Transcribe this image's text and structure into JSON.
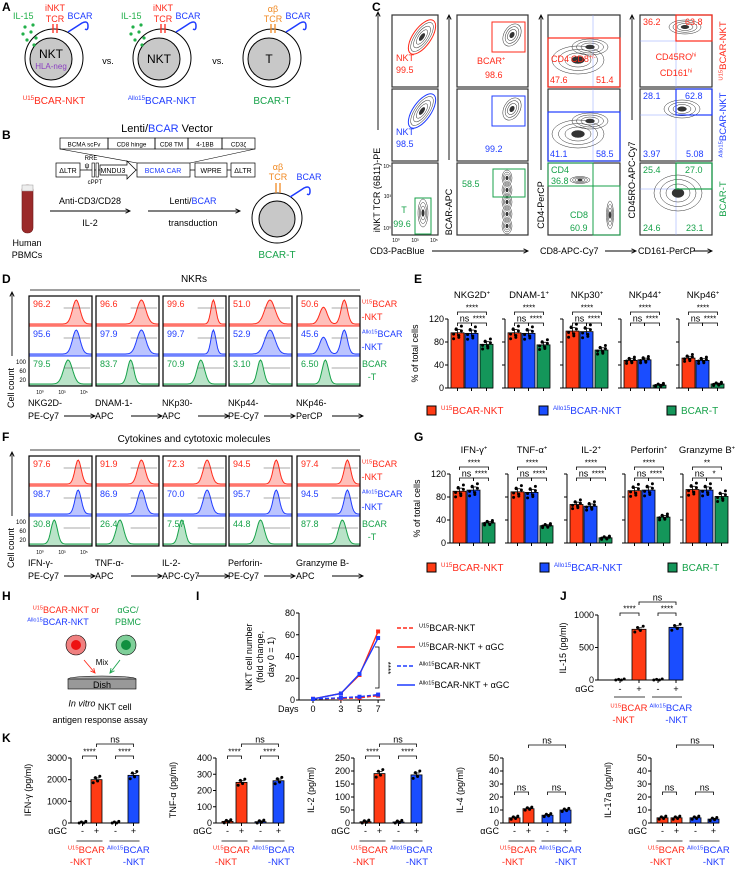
{
  "panel_letters": [
    "A",
    "B",
    "C",
    "D",
    "E",
    "F",
    "G",
    "H",
    "I",
    "J",
    "K"
  ],
  "colors": {
    "u15": "#ff2a1a",
    "allo": "#1f3cff",
    "bcart": "#17a24a",
    "tcr_ab": "#f08a24",
    "hla": "#8b3fc0",
    "il15": "#22b04a",
    "bar_u15": "#ff3b14",
    "bar_allo": "#1a4dff",
    "bar_bcart": "#14965a"
  },
  "panel_a": {
    "cells": [
      {
        "title": "^U15^BCAR-NKT",
        "core": "NKT",
        "core_sub": "HLA-neg",
        "cytokine": "IL-15",
        "tcr": [
          "iNKT",
          "TCR"
        ],
        "car": "BCAR"
      },
      {
        "title": "^Allo15^BCAR-NKT",
        "core": "NKT",
        "cytokine": "IL-15",
        "tcr": [
          "iNKT",
          "TCR"
        ],
        "car": "BCAR"
      },
      {
        "title": "BCAR-T",
        "core": "T",
        "tcr": [
          "αβ",
          "TCR"
        ],
        "car": "BCAR"
      }
    ],
    "vs": "vs."
  },
  "panel_b": {
    "title_parts": [
      "Lenti/",
      "BCAR",
      " Vector"
    ],
    "car_domains": [
      "BCMA scFv",
      "CD8 hinge",
      "CD8 TM",
      "4-1BB",
      "CD3ζ"
    ],
    "vector_elements": {
      "ltr5": "ΔLTR",
      "psi": "ψ",
      "rre": "RRE",
      "cppt": "cPPT",
      "promoter": "MNDU3",
      "car": "BCMA CAR",
      "wpre": "WPRE",
      "ltr3": "ΔLTR"
    },
    "source": [
      "Human",
      "PBMCs"
    ],
    "step1": [
      "Anti-CD3/CD28",
      "IL-2"
    ],
    "step2": [
      "Lenti/",
      "BCAR",
      "transduction"
    ],
    "product": {
      "title": "BCAR-T",
      "tcr": [
        "αβ",
        "TCR"
      ],
      "car": "BCAR"
    }
  },
  "panel_c": {
    "axes": {
      "y1": "iNKT TCR (6B11)-PE",
      "x1": "CD3-PacBlue",
      "y2": "BCAR-APC",
      "y3": "CD4-PerCP",
      "x3": "CD8-APC-Cy7",
      "y4": "CD45RO-APC-Cy7",
      "x4": "CD161-PerCP"
    },
    "ticks": [
      "10⁵",
      "10³",
      "10⁰"
    ],
    "row_labels": [
      "^U15^BCAR-NKT",
      "^Allo15^BCAR-NKT",
      "BCAR-T"
    ],
    "rows": [
      {
        "nkt_gate": {
          "label": "NKT",
          "value": "99.5"
        },
        "bcar_gate": {
          "label": "BCAR^+^",
          "value": "98.6"
        },
        "cd4_cd8": {
          "label": "CD4^-^CD8^+/-^",
          "left": "47.6",
          "right": "51.4"
        },
        "cd45ro_cd161": {
          "ul": "36.2",
          "ur": "63.8",
          "label1": "CD45RO^hi^",
          "label2": "CD161^hi^"
        }
      },
      {
        "nkt_gate": {
          "label": "NKT",
          "value": "98.5"
        },
        "bcar_gate": {
          "value": "99.2"
        },
        "cd4_cd8": {
          "left": "41.1",
          "right": "58.5"
        },
        "cd45ro_cd161": {
          "ul": "28.1",
          "ur": "62.8",
          "ll": "3.97",
          "lr": "5.08"
        }
      },
      {
        "nkt_gate": {
          "label": "T",
          "value": "99.6"
        },
        "bcar_gate": {
          "value": "58.5"
        },
        "cd4_cd8": {
          "cd4_label": "CD4",
          "cd4": "36.8",
          "cd8_label": "CD8",
          "cd8": "60.9"
        },
        "cd45ro_cd161": {
          "ul": "25.4",
          "ur": "27.0",
          "ll": "24.6",
          "lr": "23.1"
        }
      }
    ]
  },
  "panel_d": {
    "title": "NKRs",
    "ylabel": "Cell count",
    "yticks": [
      "100",
      "60",
      "20"
    ],
    "xticks": [
      "10⁰",
      "10³",
      "10⁵"
    ],
    "row_labels": [
      [
        "^U15^BCAR",
        "-NKT"
      ],
      [
        "^Allo15^BCAR",
        "-NKT"
      ],
      [
        "BCAR",
        "-T"
      ]
    ],
    "markers": [
      {
        "axis": [
          "NKG2D-",
          "PE-Cy7"
        ],
        "values": [
          "96.2",
          "95.6",
          "79.5"
        ]
      },
      {
        "axis": [
          "DNAM-1-",
          "APC"
        ],
        "values": [
          "96.6",
          "97.9",
          "83.7"
        ]
      },
      {
        "axis": [
          "NKp30-",
          "APC"
        ],
        "values": [
          "99.6",
          "99.7",
          "70.9"
        ]
      },
      {
        "axis": [
          "NKp44-",
          "PE-Cy7"
        ],
        "values": [
          "51.0",
          "52.9",
          "3.10"
        ]
      },
      {
        "axis": [
          "NKp46-",
          "PerCP"
        ],
        "values": [
          "50.6",
          "45.6",
          "6.50"
        ]
      }
    ]
  },
  "panel_e": {
    "ylabel": "% of total cells",
    "ylim": [
      0,
      120
    ],
    "yticks": [
      "0",
      "40",
      "80",
      "120"
    ],
    "charts": [
      {
        "title": "NKG2D^+^",
        "means": [
          96,
          95,
          76
        ],
        "sig": [
          "****",
          "ns",
          "****"
        ]
      },
      {
        "title": "DNAM-1^+^",
        "means": [
          96,
          95,
          75
        ],
        "sig": [
          "****",
          "ns",
          "****"
        ]
      },
      {
        "title": "NKp30^+^",
        "means": [
          99,
          98,
          66
        ],
        "sig": [
          "****",
          "ns",
          "****"
        ]
      },
      {
        "title": "NKp44^+^",
        "means": [
          48,
          49,
          5
        ],
        "sig": [
          "****",
          "ns",
          "****"
        ]
      },
      {
        "title": "NKp46^+^",
        "means": [
          52,
          48,
          7
        ],
        "sig": [
          "****",
          "ns",
          "****"
        ]
      }
    ],
    "legend": [
      "^U15^BCAR-NKT",
      "^Allo15^BCAR-NKT",
      "BCAR-T"
    ]
  },
  "panel_f": {
    "title": "Cytokines and cytotoxic molecules",
    "ylabel": "Cell count",
    "yticks": [
      "100",
      "60",
      "20"
    ],
    "xticks": [
      "10⁰",
      "10³",
      "10⁵"
    ],
    "row_labels": [
      [
        "^U15^BCAR",
        "-NKT"
      ],
      [
        "^Allo15^BCAR",
        "-NKT"
      ],
      [
        "BCAR",
        "-T"
      ]
    ],
    "markers": [
      {
        "axis": [
          "IFN-γ-",
          "PE-Cy7"
        ],
        "values": [
          "97.6",
          "98.7",
          "30.8"
        ]
      },
      {
        "axis": [
          "TNF-α-",
          "APC"
        ],
        "values": [
          "91.9",
          "86.9",
          "26.4"
        ]
      },
      {
        "axis": [
          "IL-2-",
          "APC-Cy7"
        ],
        "values": [
          "72.3",
          "70.0",
          "7.57"
        ]
      },
      {
        "axis": [
          "Perforin-",
          "PE-Cy7"
        ],
        "values": [
          "94.5",
          "95.7",
          "44.8"
        ]
      },
      {
        "axis": [
          "Granzyme B-",
          "APC"
        ],
        "values": [
          "97.4",
          "94.5",
          "87.8"
        ]
      }
    ]
  },
  "panel_g": {
    "ylabel": "% of total cells",
    "ylim": [
      0,
      120
    ],
    "yticks": [
      "0",
      "40",
      "80",
      "120"
    ],
    "charts": [
      {
        "title": "IFN-γ^+^",
        "means": [
          90,
          92,
          35
        ],
        "sig": [
          "****",
          "ns",
          "****"
        ]
      },
      {
        "title": "TNF-α^+^",
        "means": [
          89,
          88,
          30
        ],
        "sig": [
          "****",
          "ns",
          "****"
        ]
      },
      {
        "title": "IL-2^+^",
        "means": [
          67,
          64,
          9
        ],
        "sig": [
          "****",
          "ns",
          "****"
        ]
      },
      {
        "title": "Perforin^+^",
        "means": [
          91,
          92,
          45
        ],
        "sig": [
          "****",
          "ns",
          "****"
        ]
      },
      {
        "title": "Granzyme B^+^",
        "means": [
          93,
          92,
          81
        ],
        "sig": [
          "**",
          "ns",
          "*"
        ]
      }
    ],
    "legend": [
      "^U15^BCAR-NKT",
      "^Allo15^BCAR-NKT",
      "BCAR-T"
    ]
  },
  "panel_h": {
    "nkt_lines": [
      "^U15^BCAR-NKT or",
      "^Allo15^BCAR-NKT"
    ],
    "stim_lines": [
      "αGC/",
      "PBMC"
    ],
    "mix": "Mix",
    "dish": "Dish",
    "caption": [
      "^In vitro^ NKT cell",
      "antigen response assay"
    ]
  },
  "panel_i": {
    "ylabel": [
      "NKT cell number",
      "(fold change,",
      "day 0 = 1)"
    ],
    "xlabel": "Days",
    "x": [
      0,
      3,
      5,
      7
    ],
    "ylim": [
      0,
      80
    ],
    "yticks": [
      0,
      20,
      40,
      60,
      80
    ],
    "series": [
      {
        "name": "^U15^BCAR-NKT",
        "color_key": "u15",
        "dashed": true,
        "values": [
          1,
          1.5,
          2,
          4
        ]
      },
      {
        "name": "^U15^BCAR-NKT + αGC",
        "color_key": "u15",
        "dashed": false,
        "values": [
          1,
          6,
          23,
          63
        ]
      },
      {
        "name": "^Allo15^BCAR-NKT",
        "color_key": "allo",
        "dashed": true,
        "values": [
          1,
          2,
          3,
          5
        ]
      },
      {
        "name": "^Allo15^BCAR-NKT + αGC",
        "color_key": "allo",
        "dashed": false,
        "values": [
          1,
          6,
          24,
          57
        ]
      }
    ],
    "sig": "****"
  },
  "panel_j": {
    "ylabel": "IL-15 (pg/ml)",
    "ylim": [
      0,
      1000
    ],
    "yticks": [
      "0",
      "500",
      "1000"
    ],
    "means": [
      0,
      780,
      0,
      810
    ],
    "sig": [
      "****",
      "****",
      "ns"
    ],
    "agc_label": "αGC",
    "agc": [
      "-",
      "+",
      "-",
      "+"
    ],
    "groups": [
      [
        "^U15^BCAR",
        "-NKT"
      ],
      [
        "^Allo15^BCAR",
        "-NKT"
      ]
    ]
  },
  "panel_k": {
    "agc_label": "αGC",
    "agc": [
      "-",
      "+",
      "-",
      "+"
    ],
    "groups": [
      [
        "^U15^BCAR",
        "-NKT"
      ],
      [
        "^Allo15^BCAR",
        "-NKT"
      ]
    ],
    "charts": [
      {
        "ylabel": "IFN-γ (pg/ml)",
        "ylim": [
          0,
          3000
        ],
        "yticks": [
          "0",
          "1000",
          "2000",
          "3000"
        ],
        "means": [
          0,
          2000,
          0,
          2200
        ],
        "sig": [
          "****",
          "****",
          "ns"
        ]
      },
      {
        "ylabel": "TNF-α (pg/ml)",
        "ylim": [
          0,
          400
        ],
        "yticks": [
          "0",
          "100",
          "200",
          "300",
          "400"
        ],
        "means": [
          10,
          250,
          8,
          260
        ],
        "sig": [
          "****",
          "****",
          "ns"
        ]
      },
      {
        "ylabel": "IL-2 (pg/ml)",
        "ylim": [
          0,
          250
        ],
        "yticks": [
          "0",
          "50",
          "100",
          "150",
          "200",
          "250"
        ],
        "means": [
          5,
          190,
          4,
          185
        ],
        "sig": [
          "****",
          "****",
          "ns"
        ]
      },
      {
        "ylabel": "IL-4 (pg/ml)",
        "ylim": [
          0,
          50
        ],
        "yticks": [
          "0",
          "10",
          "20",
          "30",
          "40",
          "50"
        ],
        "means": [
          4,
          11,
          6,
          10
        ],
        "sig": [
          "ns",
          "ns",
          "ns"
        ]
      },
      {
        "ylabel": "IL-17a (pg/ml)",
        "ylim": [
          0,
          50
        ],
        "yticks": [
          "0",
          "10",
          "20",
          "30",
          "40",
          "50"
        ],
        "means": [
          4,
          4,
          4,
          3
        ],
        "sig": [
          "ns",
          "ns",
          "ns"
        ]
      }
    ]
  }
}
